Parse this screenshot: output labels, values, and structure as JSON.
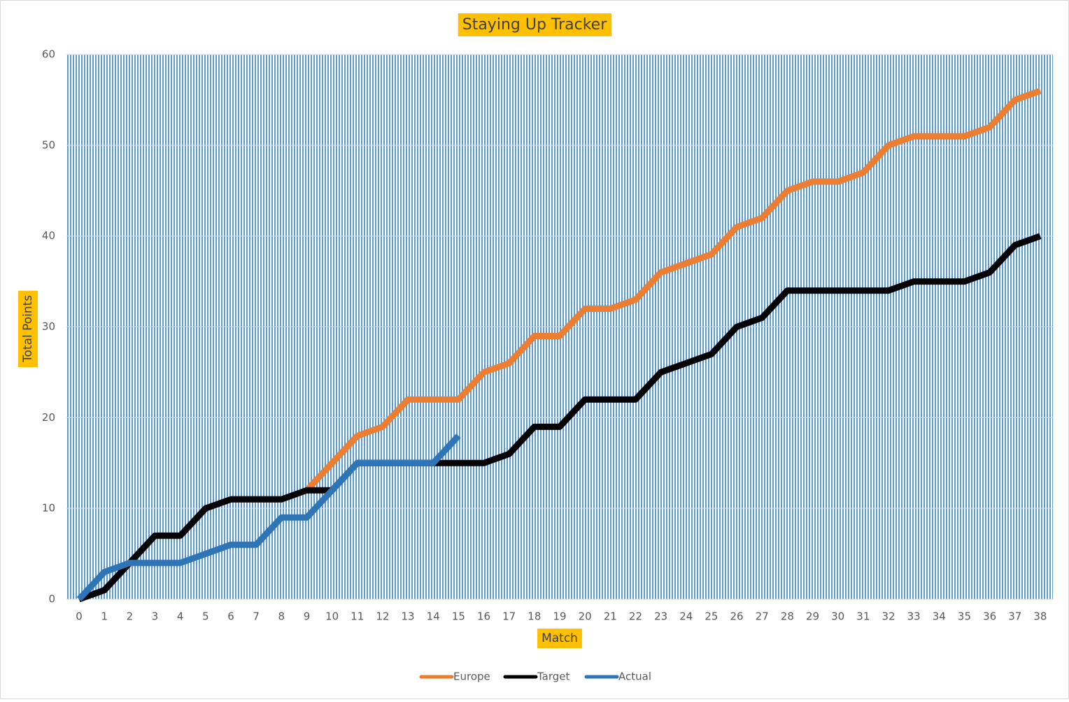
{
  "chart_data": {
    "type": "line",
    "title": "Staying Up Tracker",
    "x_label": "Match",
    "y_label": "Total Points",
    "categories": [
      "0",
      "1",
      "2",
      "3",
      "4",
      "5",
      "6",
      "7",
      "8",
      "9",
      "10",
      "11",
      "12",
      "13",
      "14",
      "15",
      "16",
      "17",
      "18",
      "19",
      "20",
      "21",
      "22",
      "23",
      "24",
      "25",
      "26",
      "27",
      "28",
      "29",
      "30",
      "31",
      "32",
      "33",
      "34",
      "35",
      "36",
      "37",
      "38"
    ],
    "series": [
      {
        "name": "Europe",
        "color": "#ed7d31",
        "values": [
          0,
          1,
          4,
          7,
          7,
          10,
          11,
          11,
          11,
          12,
          15,
          18,
          19,
          22,
          22,
          22,
          25,
          26,
          29,
          29,
          32,
          32,
          33,
          36,
          37,
          38,
          41,
          42,
          45,
          46,
          46,
          47,
          50,
          51,
          51,
          51,
          52,
          55,
          56
        ]
      },
      {
        "name": "Target",
        "color": "#000000",
        "values": [
          0,
          1,
          4,
          7,
          7,
          10,
          11,
          11,
          11,
          12,
          12,
          15,
          15,
          15,
          15,
          15,
          15,
          16,
          19,
          19,
          22,
          22,
          22,
          25,
          26,
          27,
          30,
          31,
          34,
          34,
          34,
          34,
          34,
          35,
          35,
          35,
          36,
          39,
          40
        ]
      },
      {
        "name": "Actual",
        "color": "#2e75b6",
        "values": [
          0,
          3,
          4,
          4,
          4,
          5,
          6,
          6,
          9,
          9,
          12,
          15,
          15,
          15,
          15,
          18,
          null,
          null,
          null,
          null,
          null,
          null,
          null,
          null,
          null,
          null,
          null,
          null,
          null,
          null,
          null,
          null,
          null,
          null,
          null,
          null,
          null,
          null,
          null
        ]
      }
    ],
    "ylim": [
      0,
      60
    ],
    "yticks": [
      0,
      10,
      20,
      30,
      40,
      50,
      60
    ],
    "grid": true,
    "legend": "bottom"
  }
}
